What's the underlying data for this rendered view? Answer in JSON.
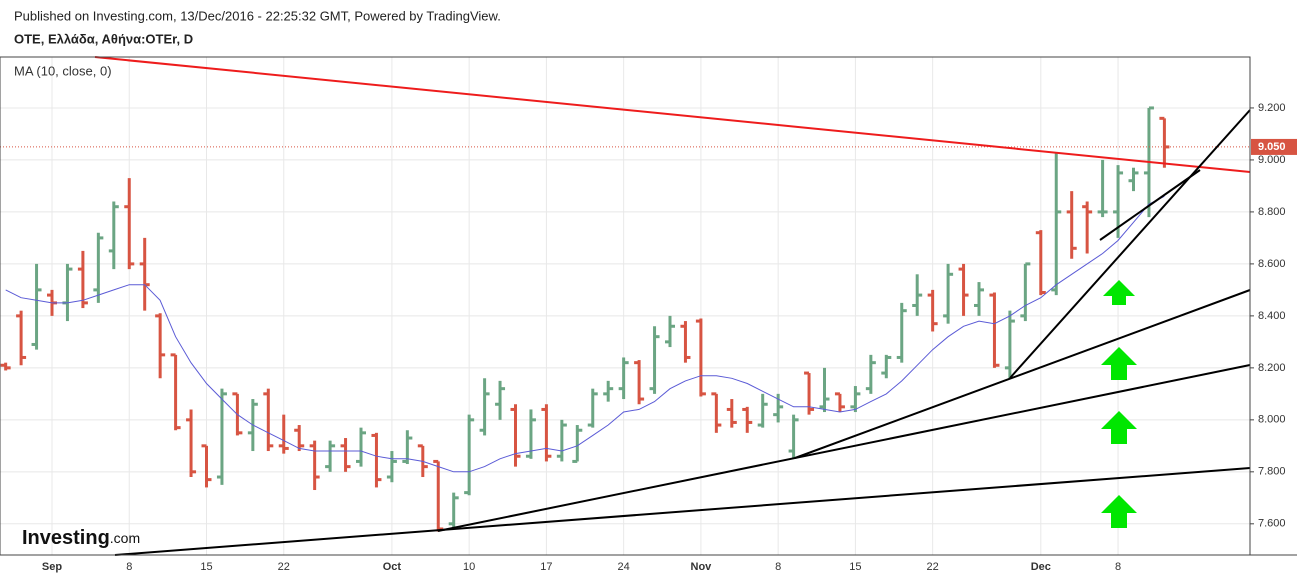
{
  "published": "Published on Investing.com, 13/Dec/2016 - 22:25:32 GMT, Powered by TradingView.",
  "symbol": "OTE, Ελλάδα, Αθήνα:OTEr, D",
  "logo": "Investing",
  "logo_suffix": ".com",
  "chart_data": {
    "type": "ohlc",
    "categories": [
      null,
      null,
      null,
      "Sep",
      null,
      null,
      null,
      null,
      "8",
      null,
      null,
      null,
      null,
      "15",
      null,
      null,
      null,
      null,
      "22",
      null,
      null,
      null,
      null,
      null,
      null,
      "Oct",
      null,
      null,
      null,
      null,
      "10",
      null,
      null,
      null,
      null,
      "17",
      null,
      null,
      null,
      null,
      "24",
      null,
      null,
      null,
      null,
      "Nov",
      null,
      null,
      null,
      null,
      "8",
      null,
      null,
      null,
      null,
      "15",
      null,
      null,
      null,
      null,
      "22",
      null,
      null,
      null,
      null,
      null,
      null,
      "Dec",
      null,
      null,
      null,
      null,
      "8",
      null,
      null,
      null
    ],
    "open": [
      8.21,
      8.4,
      8.29,
      8.48,
      8.45,
      8.58,
      8.5,
      8.65,
      8.82,
      8.6,
      8.4,
      8.25,
      8.0,
      7.9,
      7.78,
      8.1,
      7.95,
      8.1,
      7.9,
      7.96,
      7.9,
      7.82,
      7.9,
      7.84,
      7.94,
      7.78,
      7.84,
      7.9,
      7.84,
      7.6,
      7.72,
      7.96,
      8.06,
      8.04,
      7.86,
      8.04,
      7.86,
      7.84,
      7.98,
      8.1,
      8.12,
      8.22,
      8.12,
      8.3,
      8.36,
      8.38,
      8.1,
      8.04,
      8.04,
      7.98,
      8.02,
      7.88,
      8.18,
      8.05,
      8.1,
      8.05,
      8.12,
      8.18,
      8.24,
      8.44,
      8.48,
      8.4,
      8.58,
      8.44,
      8.48,
      8.2,
      8.4,
      8.72,
      8.5,
      8.8,
      8.82,
      8.8,
      8.8,
      8.92,
      8.95,
      9.16
    ],
    "high": [
      8.22,
      8.42,
      8.6,
      8.5,
      8.6,
      8.65,
      8.72,
      8.84,
      8.93,
      8.7,
      8.41,
      8.25,
      8.04,
      7.9,
      8.12,
      8.1,
      8.08,
      8.12,
      8.02,
      7.98,
      7.92,
      7.92,
      7.93,
      7.97,
      7.95,
      7.88,
      7.96,
      7.9,
      7.84,
      7.72,
      8.02,
      8.16,
      8.15,
      8.06,
      8.04,
      8.06,
      8.0,
      7.98,
      8.12,
      8.15,
      8.24,
      8.23,
      8.36,
      8.4,
      8.38,
      8.39,
      8.1,
      8.08,
      8.05,
      8.1,
      8.1,
      8.02,
      8.18,
      8.2,
      8.1,
      8.13,
      8.25,
      8.25,
      8.45,
      8.56,
      8.5,
      8.6,
      8.6,
      8.53,
      8.49,
      8.42,
      8.6,
      8.73,
      9.03,
      8.88,
      8.84,
      9.0,
      8.98,
      8.97,
      9.2,
      9.16
    ],
    "low": [
      8.19,
      8.21,
      8.27,
      8.4,
      8.38,
      8.43,
      8.45,
      8.58,
      8.58,
      8.42,
      8.16,
      7.96,
      7.78,
      7.74,
      7.75,
      7.94,
      7.88,
      7.88,
      7.87,
      7.88,
      7.73,
      7.8,
      7.8,
      7.82,
      7.74,
      7.76,
      7.83,
      7.78,
      7.57,
      7.58,
      7.71,
      7.94,
      8.0,
      7.82,
      7.85,
      7.84,
      7.84,
      7.84,
      7.97,
      8.07,
      8.08,
      8.06,
      8.1,
      8.28,
      8.22,
      8.09,
      7.95,
      7.97,
      7.95,
      7.97,
      7.99,
      7.85,
      8.02,
      8.03,
      8.03,
      8.03,
      8.1,
      8.16,
      8.22,
      8.4,
      8.34,
      8.37,
      8.4,
      8.4,
      8.2,
      8.16,
      8.38,
      8.48,
      8.48,
      8.62,
      8.64,
      8.78,
      8.7,
      8.88,
      8.78,
      8.97
    ],
    "close": [
      8.2,
      8.24,
      8.5,
      8.45,
      8.58,
      8.45,
      8.7,
      8.82,
      8.6,
      8.52,
      8.25,
      7.97,
      7.8,
      7.77,
      8.1,
      7.95,
      8.06,
      7.9,
      7.89,
      7.9,
      7.78,
      7.9,
      7.82,
      7.95,
      7.77,
      7.84,
      7.93,
      7.82,
      7.58,
      7.7,
      8.0,
      8.1,
      8.12,
      7.86,
      8.0,
      7.86,
      7.98,
      7.96,
      8.1,
      8.12,
      8.22,
      8.08,
      8.32,
      8.36,
      8.24,
      8.1,
      7.98,
      7.99,
      7.99,
      8.06,
      8.05,
      8.0,
      8.04,
      8.08,
      8.05,
      8.1,
      8.22,
      8.24,
      8.42,
      8.48,
      8.37,
      8.56,
      8.48,
      8.5,
      8.21,
      8.38,
      8.6,
      8.49,
      8.8,
      8.66,
      8.8,
      8.8,
      8.95,
      8.95,
      9.2,
      9.05
    ],
    "up_color": "#6ba583",
    "down_color": "#d75442",
    "ma": {
      "name": "MA (10, close, 0)",
      "color": "#5b5bd6",
      "values": [
        8.5,
        8.47,
        8.46,
        8.45,
        8.45,
        8.46,
        8.48,
        8.5,
        8.52,
        8.52,
        8.46,
        8.32,
        8.22,
        8.14,
        8.08,
        8.02,
        7.98,
        7.95,
        7.92,
        7.89,
        7.88,
        7.88,
        7.88,
        7.88,
        7.86,
        7.85,
        7.85,
        7.84,
        7.82,
        7.8,
        7.8,
        7.82,
        7.85,
        7.87,
        7.88,
        7.89,
        7.88,
        7.9,
        7.94,
        7.98,
        8.03,
        8.04,
        8.07,
        8.12,
        8.15,
        8.17,
        8.17,
        8.16,
        8.14,
        8.11,
        8.08,
        8.05,
        8.05,
        8.04,
        8.03,
        8.04,
        8.07,
        8.1,
        8.15,
        8.21,
        8.27,
        8.32,
        8.36,
        8.38,
        8.37,
        8.4,
        8.44,
        8.47,
        8.52,
        8.56,
        8.6,
        8.64,
        8.69,
        8.76,
        8.83,
        8.86
      ]
    },
    "last_price": {
      "value": 9.05,
      "label": "9.050"
    },
    "ylim": [
      7.48,
      9.396
    ],
    "yticks": [
      {
        "value": 7.6,
        "label": "7.600"
      },
      {
        "value": 7.8,
        "label": "7.800"
      },
      {
        "value": 8.0,
        "label": "8.000"
      },
      {
        "value": 8.2,
        "label": "8.200"
      },
      {
        "value": 8.4,
        "label": "8.400"
      },
      {
        "value": 8.6,
        "label": "8.600"
      },
      {
        "value": 8.8,
        "label": "8.800"
      },
      {
        "value": 9.0,
        "label": "9.000"
      },
      {
        "value": 9.2,
        "label": "9.200"
      }
    ],
    "grid": true
  }
}
